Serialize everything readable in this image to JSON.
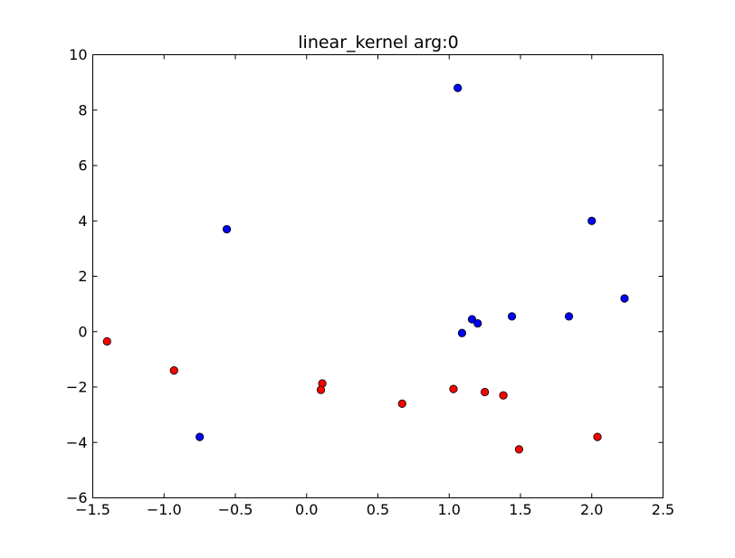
{
  "chart_data": {
    "type": "scatter",
    "title": "linear_kernel arg:0",
    "xlabel": "",
    "ylabel": "",
    "xlim": [
      -1.5,
      2.5
    ],
    "ylim": [
      -6,
      10
    ],
    "xticks": [
      -1.5,
      -1.0,
      -0.5,
      0.0,
      0.5,
      1.0,
      1.5,
      2.0,
      2.5
    ],
    "xtick_labels": [
      "−1.5",
      "−1.0",
      "−0.5",
      "0.0",
      "0.5",
      "1.0",
      "1.5",
      "2.0",
      "2.5"
    ],
    "yticks": [
      -6,
      -4,
      -2,
      0,
      2,
      4,
      6,
      8,
      10
    ],
    "ytick_labels": [
      "−6",
      "−4",
      "−2",
      "0",
      "2",
      "4",
      "6",
      "8",
      "10"
    ],
    "grid": false,
    "series": [
      {
        "color": "#0000ff",
        "points": [
          [
            1.06,
            8.8
          ],
          [
            -0.56,
            3.7
          ],
          [
            2.0,
            4.0
          ],
          [
            2.23,
            1.2
          ],
          [
            1.84,
            0.55
          ],
          [
            1.44,
            0.55
          ],
          [
            1.16,
            0.45
          ],
          [
            1.2,
            0.3
          ],
          [
            1.09,
            -0.05
          ],
          [
            -0.75,
            -3.8
          ]
        ]
      },
      {
        "color": "#ff0000",
        "points": [
          [
            -1.4,
            -0.35
          ],
          [
            -0.93,
            -1.4
          ],
          [
            0.11,
            -1.87
          ],
          [
            0.1,
            -2.1
          ],
          [
            0.67,
            -2.6
          ],
          [
            1.03,
            -2.07
          ],
          [
            1.25,
            -2.18
          ],
          [
            1.38,
            -2.3
          ],
          [
            1.49,
            -4.25
          ],
          [
            2.04,
            -3.8
          ]
        ]
      }
    ]
  }
}
